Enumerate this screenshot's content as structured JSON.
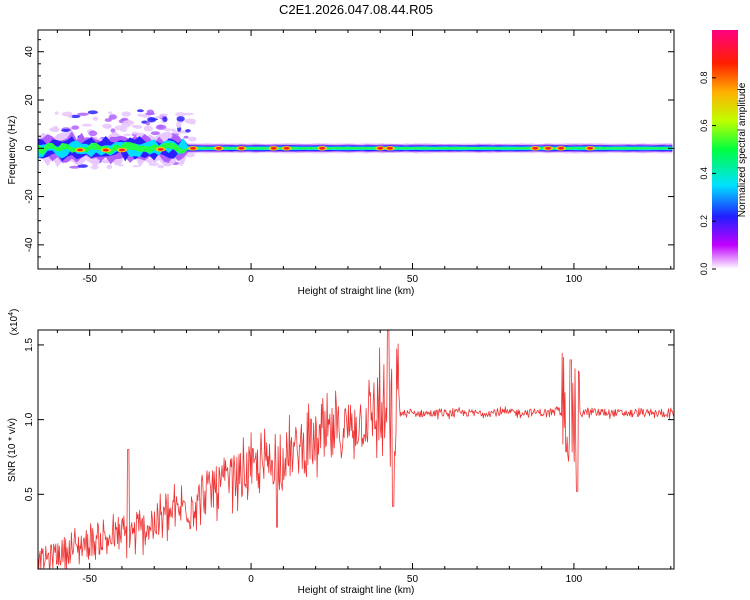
{
  "title": "C2E1.2026.047.08.44.R05",
  "chart_data": [
    {
      "type": "heatmap",
      "name": "spectrogram",
      "xlabel": "Height of straight line (km)",
      "ylabel": "Frequency (Hz)",
      "xlim": [
        -66,
        131
      ],
      "ylim": [
        -50,
        49
      ],
      "xticks": [
        "-50",
        "0",
        "50",
        "100"
      ],
      "yticks": [
        "-40",
        "-20",
        "0",
        "20",
        "40"
      ],
      "xtick_values": [
        -50,
        0,
        50,
        100
      ],
      "ytick_values": [
        -40,
        -20,
        0,
        20,
        40
      ],
      "colorbar": {
        "label": "Normalized spectral amplitude",
        "range": [
          0,
          1
        ],
        "ticks": [
          "0.0",
          "0.2",
          "0.4",
          "0.6",
          "0.8"
        ],
        "tick_values": [
          0.0,
          0.2,
          0.4,
          0.6,
          0.8
        ]
      },
      "band": {
        "center_hz": 0,
        "halfwidth_hz_noisy": 5,
        "halfwidth_hz_stable": 2,
        "noisy_region_km": [
          -66,
          -20
        ]
      },
      "hotspots_km": [
        -53,
        -45,
        -40,
        -28,
        -18,
        -10,
        -3,
        7,
        11,
        22,
        40,
        43,
        88,
        92,
        96,
        105
      ],
      "scatter_region": {
        "x_km": [
          -62,
          -18
        ],
        "y_hz": [
          -8,
          16
        ]
      }
    },
    {
      "type": "line",
      "name": "snr",
      "xlabel": "Height of straight line (km)",
      "ylabel": "SNR (10 * v/v)",
      "multiplier": "(x10",
      "multiplier_exp": "4",
      "multiplier_close": ")",
      "xlim": [
        -66,
        131
      ],
      "ylim": [
        0.0,
        1.6
      ],
      "xticks": [
        "-50",
        "0",
        "50",
        "100"
      ],
      "yticks": [
        "0.5",
        "1.0",
        "1.5"
      ],
      "xtick_values": [
        -50,
        0,
        50,
        100
      ],
      "ytick_values": [
        0.5,
        1.0,
        1.5
      ],
      "color": "#ee3333",
      "trend": [
        {
          "x": -66,
          "y": 0.05
        },
        {
          "x": -50,
          "y": 0.18
        },
        {
          "x": -35,
          "y": 0.25
        },
        {
          "x": -20,
          "y": 0.42
        },
        {
          "x": -5,
          "y": 0.62
        },
        {
          "x": 10,
          "y": 0.75
        },
        {
          "x": 25,
          "y": 0.9
        },
        {
          "x": 38,
          "y": 1.03
        },
        {
          "x": 46,
          "y": 1.04
        },
        {
          "x": 95,
          "y": 1.05
        },
        {
          "x": 131,
          "y": 1.04
        }
      ],
      "spikes": [
        {
          "x": -38,
          "y": 0.8
        },
        {
          "x": 8,
          "y": 0.28
        },
        {
          "x": 42.5,
          "y": 1.6
        },
        {
          "x": 44,
          "y": 0.42
        },
        {
          "x": 99,
          "y": 1.4
        },
        {
          "x": 101,
          "y": 0.52
        }
      ]
    }
  ]
}
